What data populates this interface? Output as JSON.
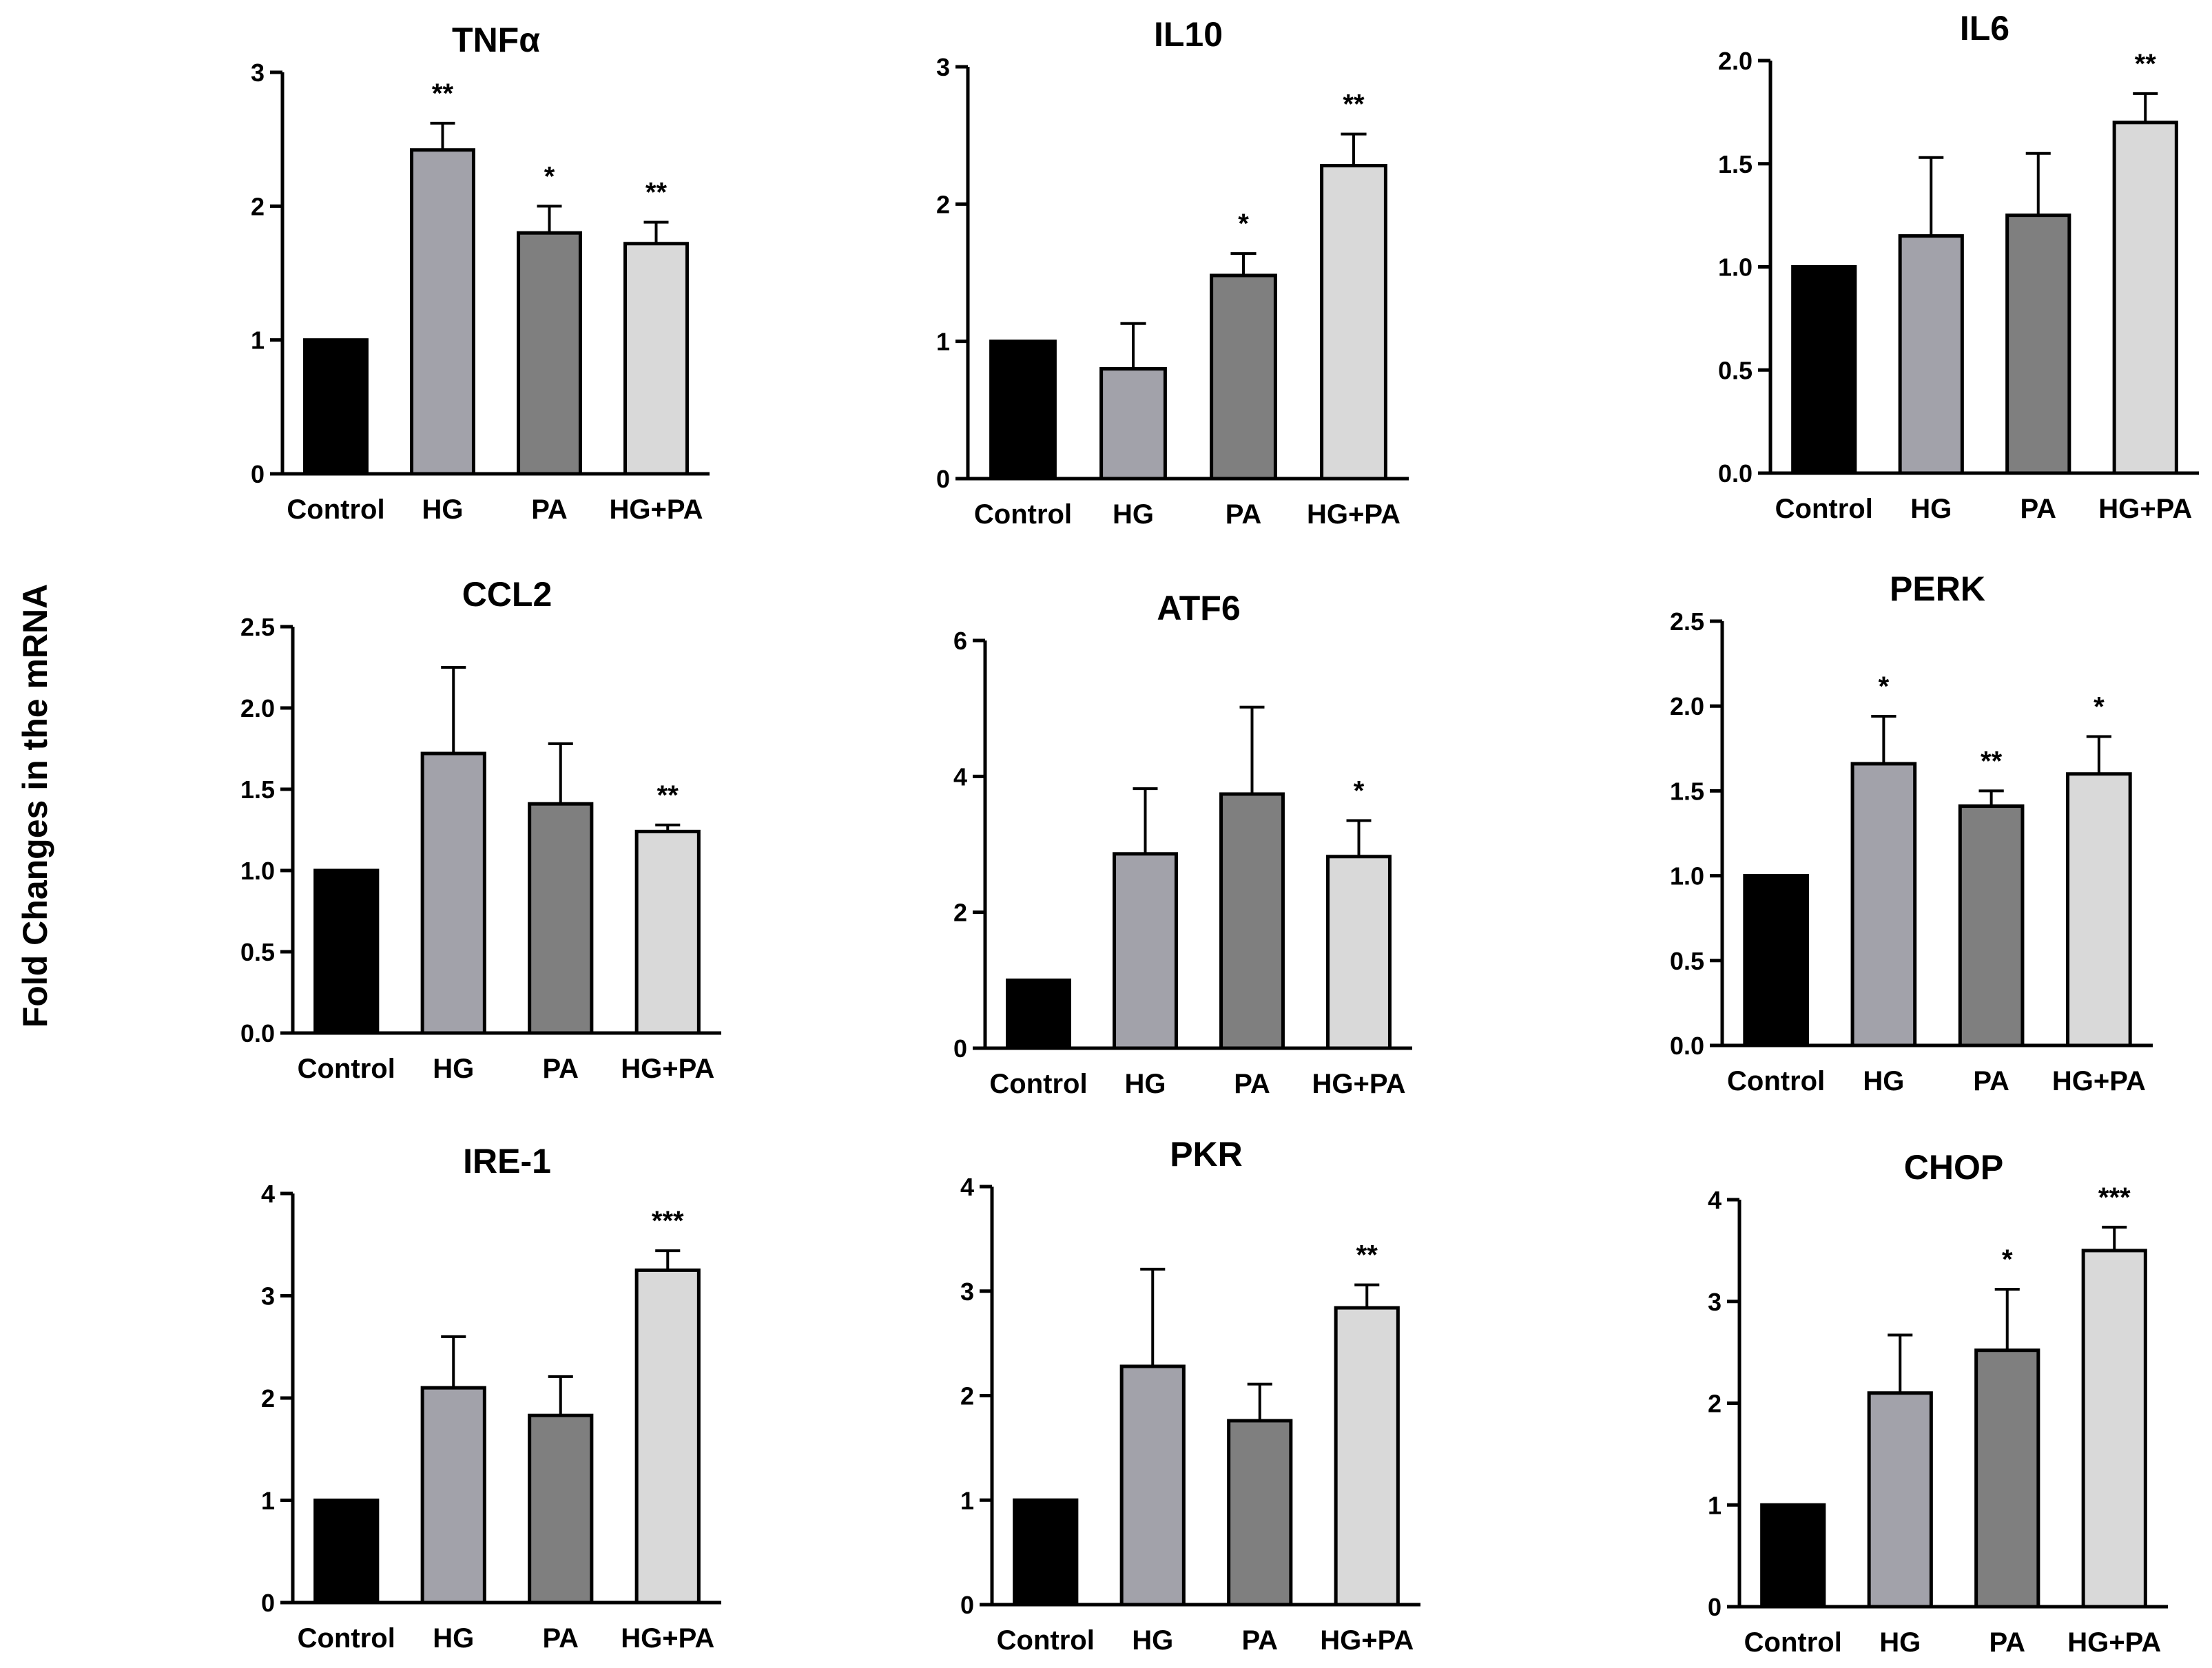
{
  "figure": {
    "ylabel": "Fold Changes in the mRNA",
    "bar_colors": [
      "#000000",
      "#a2a2aa",
      "#7f7f7f",
      "#d9d9d9"
    ]
  },
  "chart_data": [
    {
      "type": "bar",
      "title": "TNFα",
      "categories": [
        "Control",
        "HG",
        "PA",
        "HG+PA"
      ],
      "values": [
        1.0,
        2.42,
        1.8,
        1.72
      ],
      "errors": [
        0,
        0.2,
        0.2,
        0.16
      ],
      "significance": [
        "",
        "**",
        "*",
        "**"
      ],
      "ylim": [
        0,
        3
      ],
      "yticks": [
        "0",
        "1",
        "2",
        "3"
      ]
    },
    {
      "type": "bar",
      "title": "IL10",
      "categories": [
        "Control",
        "HG",
        "PA",
        "HG+PA"
      ],
      "values": [
        1.0,
        0.8,
        1.48,
        2.28
      ],
      "errors": [
        0,
        0.33,
        0.16,
        0.23
      ],
      "significance": [
        "",
        "",
        "*",
        "**"
      ],
      "ylim": [
        0,
        3
      ],
      "yticks": [
        "0",
        "1",
        "2",
        "3"
      ]
    },
    {
      "type": "bar",
      "title": "IL6",
      "categories": [
        "Control",
        "HG",
        "PA",
        "HG+PA"
      ],
      "values": [
        1.0,
        1.15,
        1.25,
        1.7
      ],
      "errors": [
        0,
        0.38,
        0.3,
        0.14
      ],
      "significance": [
        "",
        "",
        "",
        "**"
      ],
      "ylim": [
        0,
        2
      ],
      "yticks": [
        "0.0",
        "0.5",
        "1.0",
        "1.5",
        "2.0"
      ]
    },
    {
      "type": "bar",
      "title": "CCL2",
      "categories": [
        "Control",
        "HG",
        "PA",
        "HG+PA"
      ],
      "values": [
        1.0,
        1.72,
        1.41,
        1.24
      ],
      "errors": [
        0,
        0.53,
        0.37,
        0.04
      ],
      "significance": [
        "",
        "",
        "",
        "**"
      ],
      "ylim": [
        0,
        2.5
      ],
      "yticks": [
        "0.0",
        "0.5",
        "1.0",
        "1.5",
        "2.0",
        "2.5"
      ]
    },
    {
      "type": "bar",
      "title": "ATF6",
      "categories": [
        "Control",
        "HG",
        "PA",
        "HG+PA"
      ],
      "values": [
        1.0,
        2.86,
        3.74,
        2.82
      ],
      "errors": [
        0,
        0.96,
        1.28,
        0.53
      ],
      "significance": [
        "",
        "",
        "",
        "*"
      ],
      "ylim": [
        0,
        6
      ],
      "yticks": [
        "0",
        "2",
        "4",
        "6"
      ]
    },
    {
      "type": "bar",
      "title": "PERK",
      "categories": [
        "Control",
        "HG",
        "PA",
        "HG+PA"
      ],
      "values": [
        1.0,
        1.66,
        1.41,
        1.6
      ],
      "errors": [
        0,
        0.28,
        0.09,
        0.22
      ],
      "significance": [
        "",
        "*",
        "**",
        "*"
      ],
      "ylim": [
        0,
        2.5
      ],
      "yticks": [
        "0.0",
        "0.5",
        "1.0",
        "1.5",
        "2.0",
        "2.5"
      ]
    },
    {
      "type": "bar",
      "title": "IRE-1",
      "categories": [
        "Control",
        "HG",
        "PA",
        "HG+PA"
      ],
      "values": [
        1.0,
        2.1,
        1.83,
        3.25
      ],
      "errors": [
        0,
        0.5,
        0.38,
        0.19
      ],
      "significance": [
        "",
        "",
        "",
        "***"
      ],
      "ylim": [
        0,
        4
      ],
      "yticks": [
        "0",
        "1",
        "2",
        "3",
        "4"
      ]
    },
    {
      "type": "bar",
      "title": "PKR",
      "categories": [
        "Control",
        "HG",
        "PA",
        "HG+PA"
      ],
      "values": [
        1.0,
        2.28,
        1.76,
        2.84
      ],
      "errors": [
        0,
        0.93,
        0.35,
        0.22
      ],
      "significance": [
        "",
        "",
        "",
        "**"
      ],
      "ylim": [
        0,
        4
      ],
      "yticks": [
        "0",
        "1",
        "2",
        "3",
        "4"
      ]
    },
    {
      "type": "bar",
      "title": "CHOP",
      "categories": [
        "Control",
        "HG",
        "PA",
        "HG+PA"
      ],
      "values": [
        1.0,
        2.1,
        2.52,
        3.5
      ],
      "errors": [
        0,
        0.57,
        0.6,
        0.23
      ],
      "significance": [
        "",
        "",
        "*",
        "***"
      ],
      "ylim": [
        0,
        4
      ],
      "yticks": [
        "0",
        "1",
        "2",
        "3",
        "4"
      ]
    }
  ]
}
